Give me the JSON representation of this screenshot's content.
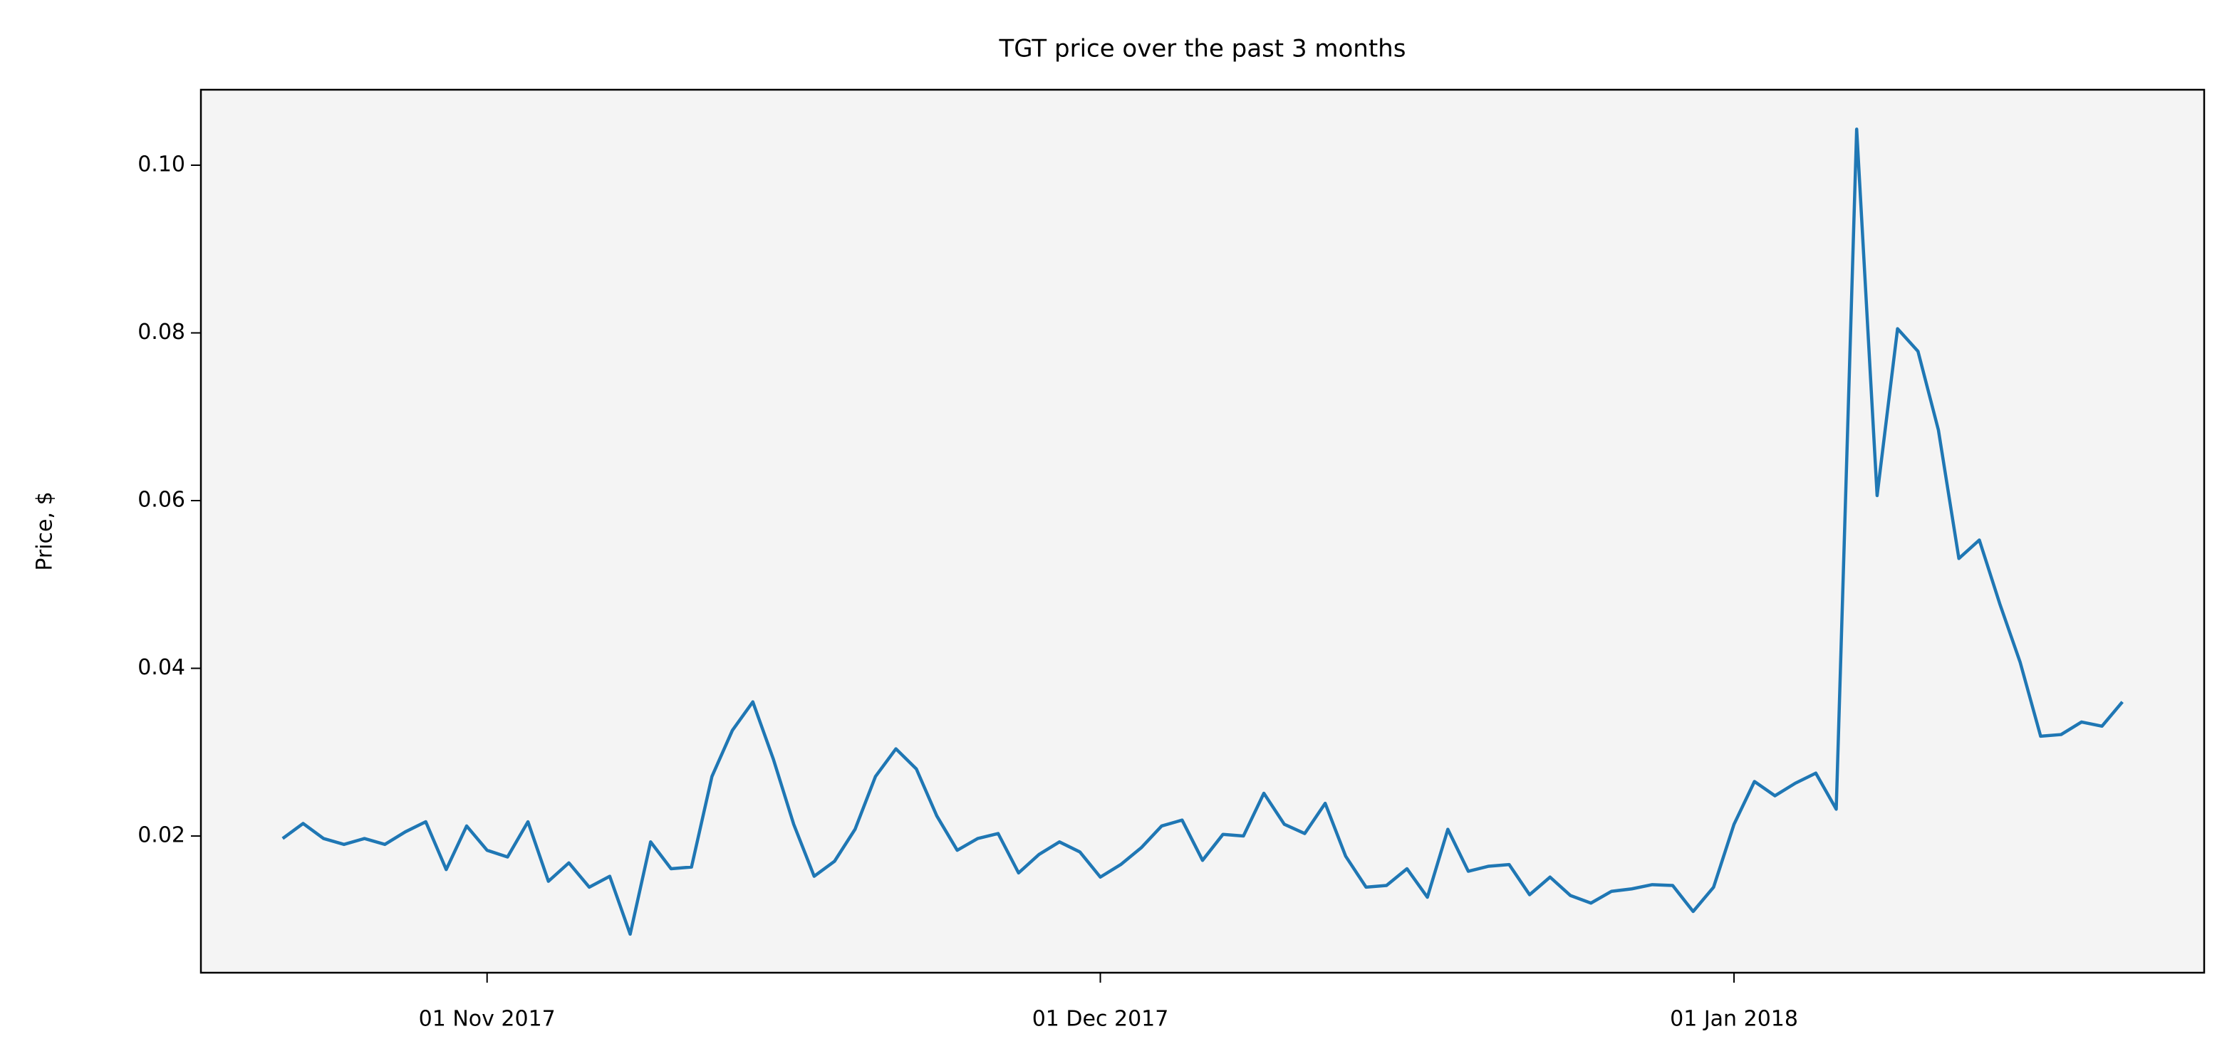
{
  "chart_data": {
    "type": "line",
    "title": "TGT price over the past 3 months",
    "y_label": "Price, $",
    "x": [
      "2017-10-22",
      "2017-10-23",
      "2017-10-24",
      "2017-10-25",
      "2017-10-26",
      "2017-10-27",
      "2017-10-28",
      "2017-10-29",
      "2017-10-30",
      "2017-10-31",
      "2017-11-01",
      "2017-11-02",
      "2017-11-03",
      "2017-11-04",
      "2017-11-05",
      "2017-11-06",
      "2017-11-07",
      "2017-11-08",
      "2017-11-09",
      "2017-11-10",
      "2017-11-11",
      "2017-11-12",
      "2017-11-13",
      "2017-11-14",
      "2017-11-15",
      "2017-11-16",
      "2017-11-17",
      "2017-11-18",
      "2017-11-19",
      "2017-11-20",
      "2017-11-21",
      "2017-11-22",
      "2017-11-23",
      "2017-11-24",
      "2017-11-25",
      "2017-11-26",
      "2017-11-27",
      "2017-11-28",
      "2017-11-29",
      "2017-11-30",
      "2017-12-01",
      "2017-12-02",
      "2017-12-03",
      "2017-12-04",
      "2017-12-05",
      "2017-12-06",
      "2017-12-07",
      "2017-12-08",
      "2017-12-09",
      "2017-12-10",
      "2017-12-11",
      "2017-12-12",
      "2017-12-13",
      "2017-12-14",
      "2017-12-15",
      "2017-12-16",
      "2017-12-17",
      "2017-12-18",
      "2017-12-19",
      "2017-12-20",
      "2017-12-21",
      "2017-12-22",
      "2017-12-23",
      "2017-12-24",
      "2017-12-25",
      "2017-12-26",
      "2017-12-27",
      "2017-12-28",
      "2017-12-29",
      "2017-12-30",
      "2017-12-31",
      "2018-01-01",
      "2018-01-02",
      "2018-01-03",
      "2018-01-04",
      "2018-01-05",
      "2018-01-06",
      "2018-01-07",
      "2018-01-08",
      "2018-01-09",
      "2018-01-10",
      "2018-01-11",
      "2018-01-12",
      "2018-01-13",
      "2018-01-14",
      "2018-01-15",
      "2018-01-16",
      "2018-01-17",
      "2018-01-18",
      "2018-01-19",
      "2018-01-20"
    ],
    "series": [
      {
        "color": "#1f77b4",
        "values": [
          0.0197,
          0.0215,
          0.0197,
          0.019,
          0.0197,
          0.019,
          0.0205,
          0.0217,
          0.016,
          0.0212,
          0.0183,
          0.0175,
          0.0217,
          0.0146,
          0.0168,
          0.0139,
          0.0152,
          0.0083,
          0.0193,
          0.0161,
          0.0163,
          0.0271,
          0.0326,
          0.036,
          0.0292,
          0.0214,
          0.0152,
          0.017,
          0.0208,
          0.0271,
          0.0304,
          0.028,
          0.0224,
          0.0183,
          0.0197,
          0.0203,
          0.0156,
          0.0178,
          0.0193,
          0.0181,
          0.0151,
          0.0166,
          0.0186,
          0.0212,
          0.0219,
          0.0171,
          0.0202,
          0.02,
          0.0251,
          0.0214,
          0.0203,
          0.0239,
          0.0176,
          0.0139,
          0.0141,
          0.0161,
          0.0127,
          0.0208,
          0.0158,
          0.0164,
          0.0166,
          0.013,
          0.0151,
          0.0129,
          0.012,
          0.0134,
          0.0137,
          0.0142,
          0.0141,
          0.011,
          0.0139,
          0.0214,
          0.0265,
          0.0248,
          0.0263,
          0.0275,
          0.0232,
          0.1043,
          0.0606,
          0.0805,
          0.0778,
          0.0684,
          0.0531,
          0.0553,
          0.0477,
          0.0407,
          0.0319,
          0.0321,
          0.0336,
          0.0331,
          0.036
        ]
      }
    ],
    "xlim": [
      "2017-10-18",
      "2018-01-24"
    ],
    "xticks": [
      {
        "value": "2017-11-01",
        "label": "01 Nov 2017"
      },
      {
        "value": "2017-12-01",
        "label": "01 Dec 2017"
      },
      {
        "value": "2018-01-01",
        "label": "01 Jan 2018"
      }
    ],
    "ylim": [
      0.0037,
      0.109
    ],
    "yticks": [
      0.02,
      0.04,
      0.06,
      0.08,
      {
        "value": 0.1,
        "label": "0.10"
      }
    ],
    "background": "#f4f4f4"
  }
}
